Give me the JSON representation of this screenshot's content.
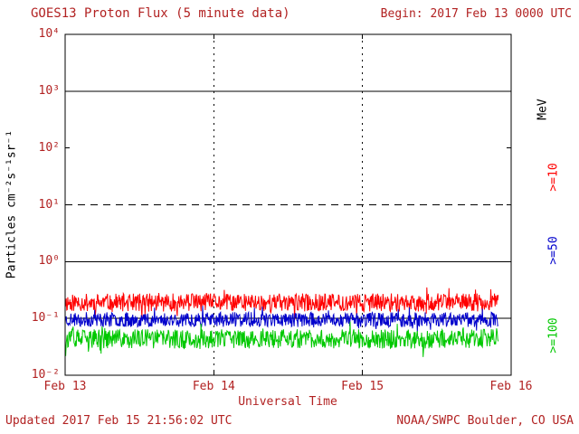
{
  "header": {
    "title": "GOES13 Proton Flux (5 minute data)",
    "begin_label": "Begin: 2017 Feb 13 0000 UTC"
  },
  "footer": {
    "updated": "Updated 2017 Feb 15 21:56:02 UTC",
    "credit": "NOAA/SWPC Boulder, CO USA"
  },
  "colors": {
    "text": "#b22222",
    "axis": "#000000",
    "background": "#ffffff"
  },
  "right_labels": [
    {
      "label": "MeV",
      "color": "#000000"
    },
    {
      "label": ">=10",
      "color": "#ff0000"
    },
    {
      "label": ">=50",
      "color": "#0000cc"
    },
    {
      "label": ">=100",
      "color": "#00c800"
    }
  ],
  "chart_data": {
    "type": "line",
    "title": "GOES13 Proton Flux (5 minute data)",
    "xlabel": "Universal Time",
    "ylabel": "Particles cm⁻²s⁻¹sr⁻¹",
    "y_scale": "log",
    "x_ticks": [
      "Feb 13",
      "Feb 14",
      "Feb 15",
      "Feb 16"
    ],
    "x_range_days": 3,
    "y_log_range": [
      -2,
      4
    ],
    "y_tick_labels": [
      "10⁴",
      "10³",
      "10²",
      "10¹",
      "10⁰",
      "10⁻¹",
      "10⁻²"
    ],
    "grid": {
      "hlines": [
        {
          "value": 1000,
          "style": "solid"
        },
        {
          "value": 10,
          "style": "dashed"
        },
        {
          "value": 1,
          "style": "solid"
        },
        {
          "value": 0.1,
          "style": "solid"
        }
      ],
      "vlines_at_day": [
        1,
        2
      ]
    },
    "series": [
      {
        "name": ">=10 MeV",
        "color": "#ff0000",
        "baseline_log10": -0.72,
        "noise_log10": 0.16,
        "spike_log10": 0.2,
        "approx_flux_range": [
          0.1,
          0.35
        ]
      },
      {
        "name": ">=50 MeV",
        "color": "#0000cc",
        "baseline_log10": -1.02,
        "noise_log10": 0.13,
        "spike_log10": 0.16,
        "approx_flux_range": [
          0.05,
          0.15
        ]
      },
      {
        "name": ">=100 MeV",
        "color": "#00c800",
        "baseline_log10": -1.36,
        "noise_log10": 0.17,
        "spike_log10": 0.2,
        "approx_flux_range": [
          0.02,
          0.08
        ]
      }
    ],
    "data_end_fraction": 0.971,
    "points_per_series": 820,
    "legend_position": "right"
  }
}
